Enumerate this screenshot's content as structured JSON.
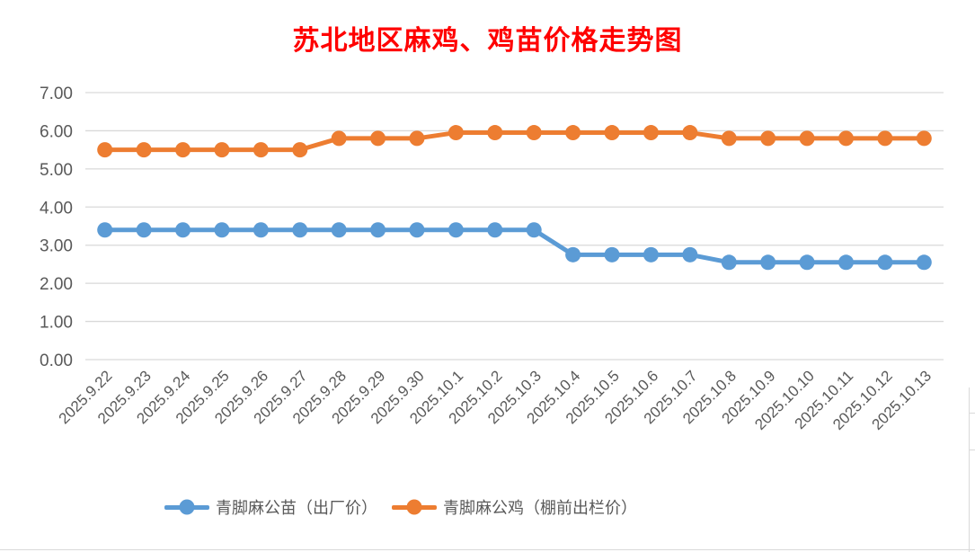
{
  "chart_data": {
    "type": "line",
    "title": "苏北地区麻鸡、鸡苗价格走势图",
    "title_color": "#ff0000",
    "categories": [
      "2025.9.22",
      "2025.9.23",
      "2025.9.24",
      "2025.9.25",
      "2025.9.26",
      "2025.9.27",
      "2025.9.28",
      "2025.9.29",
      "2025.9.30",
      "2025.10.1",
      "2025.10.2",
      "2025.10.3",
      "2025.10.4",
      "2025.10.5",
      "2025.10.6",
      "2025.10.7",
      "2025.10.8",
      "2025.10.9",
      "2025.10.10",
      "2025.10.11",
      "2025.10.12",
      "2025.10.13"
    ],
    "series": [
      {
        "name": "青脚麻公苗（出厂价）",
        "color": "#5B9BD5",
        "values": [
          3.4,
          3.4,
          3.4,
          3.4,
          3.4,
          3.4,
          3.4,
          3.4,
          3.4,
          3.4,
          3.4,
          3.4,
          2.75,
          2.75,
          2.75,
          2.75,
          2.55,
          2.55,
          2.55,
          2.55,
          2.55,
          2.55
        ]
      },
      {
        "name": "青脚麻公鸡（棚前出栏价）",
        "color": "#ED7D31",
        "values": [
          5.5,
          5.5,
          5.5,
          5.5,
          5.5,
          5.5,
          5.8,
          5.8,
          5.8,
          5.95,
          5.95,
          5.95,
          5.95,
          5.95,
          5.95,
          5.95,
          5.8,
          5.8,
          5.8,
          5.8,
          5.8,
          5.8
        ]
      }
    ],
    "xlabel": "",
    "ylabel": "",
    "ylim": [
      0,
      7
    ],
    "ytick_labels": [
      "0.00",
      "1.00",
      "2.00",
      "3.00",
      "4.00",
      "5.00",
      "6.00",
      "7.00"
    ],
    "grid": true,
    "gridline_color": "#D9D9D9",
    "axis_text_color": "#595959",
    "legend_position": "bottom"
  }
}
